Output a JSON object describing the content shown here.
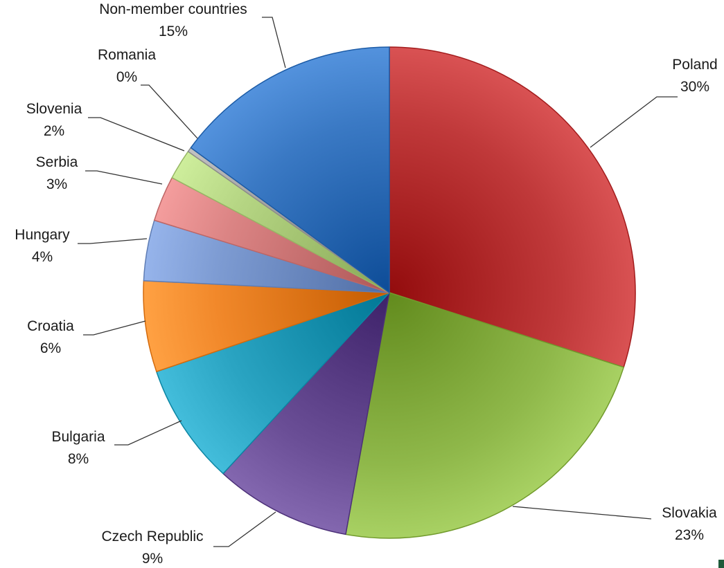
{
  "chart_data": {
    "type": "pie",
    "title": "",
    "slices": [
      {
        "name": "Poland",
        "value": 30,
        "label": "30%",
        "color": "#c0393a"
      },
      {
        "name": "Slovakia",
        "value": 23,
        "label": "23%",
        "color": "#8fb84a"
      },
      {
        "name": "Czech Republic",
        "value": 9,
        "label": "9%",
        "color": "#6a4e96"
      },
      {
        "name": "Bulgaria",
        "value": 8,
        "label": "8%",
        "color": "#2aa4c2"
      },
      {
        "name": "Croatia",
        "value": 6,
        "label": "6%",
        "color": "#f1882a"
      },
      {
        "name": "Hungary",
        "value": 4,
        "label": "4%",
        "color": "#7d9bd2"
      },
      {
        "name": "Serbia",
        "value": 3,
        "label": "3%",
        "color": "#db8484"
      },
      {
        "name": "Slovenia",
        "value": 2,
        "label": "2%",
        "color": "#b5d583"
      },
      {
        "name": "Romania",
        "value": 0.3,
        "label": "0%",
        "color": "#a9a9a9"
      },
      {
        "name": "Non-member countries",
        "value": 15,
        "label": "15%",
        "color": "#3a79c4"
      }
    ],
    "legend": "none",
    "start_angle_deg": 0,
    "direction": "clockwise"
  }
}
